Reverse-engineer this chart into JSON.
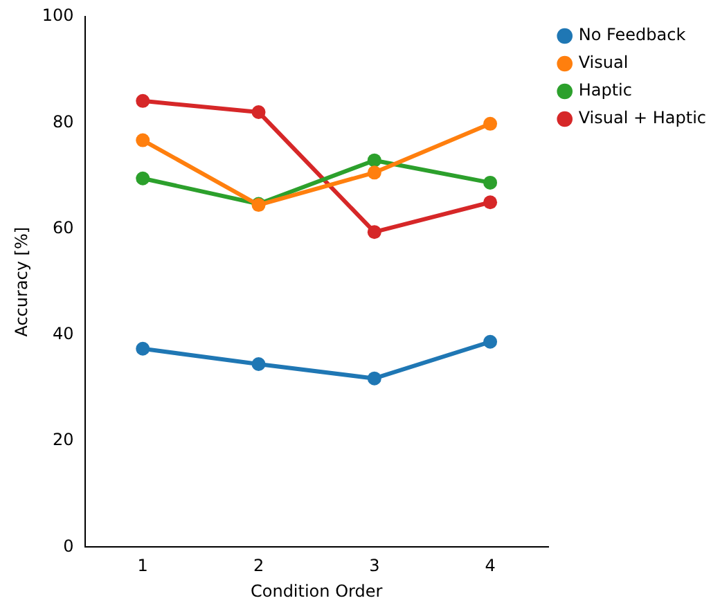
{
  "chart_data": {
    "type": "line",
    "xlabel": "Condition Order",
    "ylabel": "Accuracy [%]",
    "categories": [
      "1",
      "2",
      "3",
      "4"
    ],
    "ylim": [
      0,
      100
    ],
    "yticks": [
      0,
      20,
      40,
      60,
      80,
      100
    ],
    "grid": false,
    "legend": "top right",
    "marker": "circle",
    "line_style": "solid",
    "series": [
      {
        "name": "No Feedback",
        "color": "#1f77b4",
        "values": [
          37.4,
          34.5,
          31.8,
          38.7
        ]
      },
      {
        "name": "Visual",
        "color": "#ff7f0e",
        "values": [
          76.7,
          64.5,
          70.6,
          79.8
        ]
      },
      {
        "name": "Haptic",
        "color": "#2ca02c",
        "values": [
          69.5,
          64.7,
          72.9,
          68.7
        ]
      },
      {
        "name": "Visual + Haptic",
        "color": "#d62728",
        "values": [
          84.1,
          82.0,
          59.4,
          65.0
        ]
      }
    ]
  }
}
